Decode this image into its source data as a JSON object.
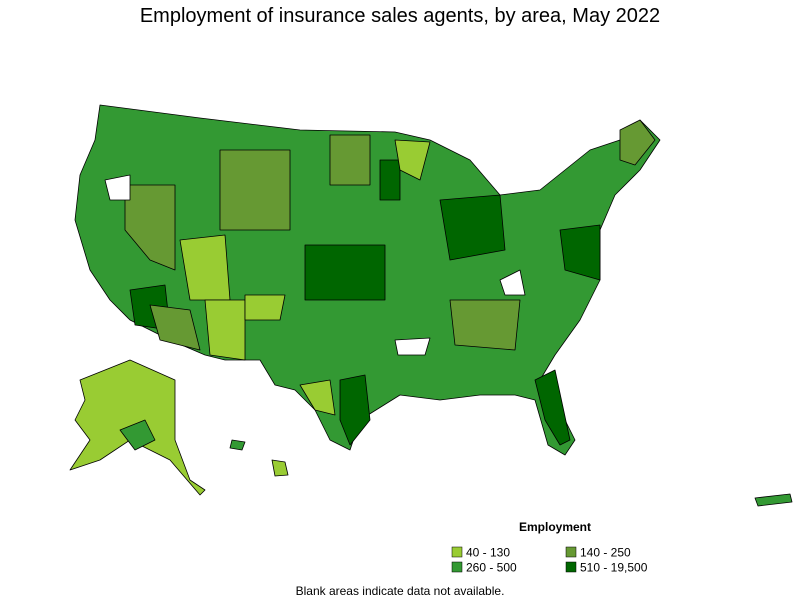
{
  "title": "Employment of insurance sales agents, by area, May 2022",
  "legend": {
    "title": "Employment",
    "items": [
      {
        "label": "40 - 130",
        "color": "#99cc33"
      },
      {
        "label": "140 - 250",
        "color": "#669933"
      },
      {
        "label": "260 - 500",
        "color": "#339933"
      },
      {
        "label": "510 - 19,500",
        "color": "#006600"
      }
    ]
  },
  "note": "Blank areas indicate data not available."
}
